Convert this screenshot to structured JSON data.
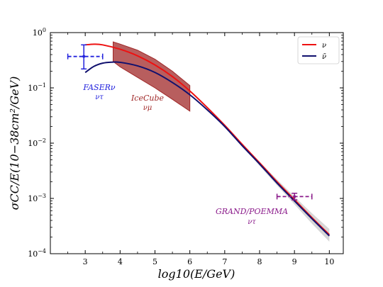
{
  "chart_data": {
    "type": "line",
    "xlabel": "log10(E/GeV)",
    "ylabel": "σCC/E(10−38cm²/GeV)",
    "xlim": [
      2.0,
      10.4
    ],
    "ylim_log10": [
      -4,
      0
    ],
    "y_scale": "log",
    "x_ticks": [
      3,
      4,
      5,
      6,
      7,
      8,
      9,
      10
    ],
    "y_ticks": [
      {
        "base": "10",
        "exp": "0",
        "value": 1
      },
      {
        "base": "10",
        "exp": "−1",
        "value": 0.1
      },
      {
        "base": "10",
        "exp": "−2",
        "value": 0.01
      },
      {
        "base": "10",
        "exp": "−3",
        "value": 0.001
      },
      {
        "base": "10",
        "exp": "−4",
        "value": 0.0001
      }
    ],
    "series": [
      {
        "name": "ν",
        "color": "#ee1111",
        "x": [
          3.0,
          3.25,
          3.5,
          4.0,
          4.5,
          5.0,
          5.5,
          6.0,
          6.5,
          7.0,
          7.5,
          8.0,
          8.5,
          9.0,
          9.5,
          10.0
        ],
        "y": [
          0.6,
          0.617,
          0.6,
          0.5,
          0.38,
          0.26,
          0.16,
          0.088,
          0.044,
          0.021,
          0.0095,
          0.0044,
          0.002,
          0.00095,
          0.00045,
          0.00022
        ]
      },
      {
        "name": "ν̄",
        "color": "#10106e",
        "x": [
          3.0,
          3.25,
          3.5,
          3.75,
          4.0,
          4.5,
          5.0,
          5.5,
          6.0,
          6.5,
          7.0,
          7.5,
          8.0,
          8.5,
          9.0,
          9.5,
          10.0
        ],
        "y": [
          0.19,
          0.245,
          0.28,
          0.292,
          0.29,
          0.25,
          0.19,
          0.125,
          0.075,
          0.04,
          0.02,
          0.009,
          0.0042,
          0.0019,
          0.0009,
          0.00043,
          0.00021
        ]
      }
    ],
    "uncertainty_band_high_energy": {
      "color": "#c8c8c8",
      "x": [
        7.0,
        7.5,
        8.0,
        8.5,
        9.0,
        9.5,
        10.0
      ],
      "y_low": [
        0.0197,
        0.0089,
        0.0039,
        0.00172,
        0.00078,
        0.00035,
        0.000165
      ],
      "y_high": [
        0.0215,
        0.0098,
        0.0046,
        0.0022,
        0.00108,
        0.00054,
        0.00028
      ]
    },
    "measurements": [
      {
        "label": "IceCube",
        "sublabel": "νμ",
        "color": "#a02828",
        "kind": "band",
        "x": [
          3.8,
          4.0,
          4.5,
          5.0,
          5.5,
          6.0
        ],
        "y_low": [
          0.3,
          0.24,
          0.155,
          0.1,
          0.062,
          0.038
        ],
        "y_high": [
          0.68,
          0.62,
          0.48,
          0.33,
          0.2,
          0.11
        ]
      },
      {
        "label": "FASERν",
        "sublabel": "ντ",
        "color": "#2222dd",
        "kind": "errorbar",
        "x": 2.96,
        "y": 0.37,
        "xerr": [
          2.5,
          3.5
        ],
        "yerr": [
          0.22,
          0.6
        ]
      },
      {
        "label": "GRAND/POEMMA",
        "sublabel": "ντ",
        "color": "#8a1a8a",
        "kind": "errorbar",
        "x": 9.0,
        "y": 0.00108,
        "xerr": [
          8.5,
          9.5
        ],
        "yerr": [
          0.00094,
          0.00124
        ]
      }
    ],
    "legend": {
      "placement": "top-right",
      "entries": [
        {
          "label": "ν",
          "color": "#ee1111"
        },
        {
          "label": "ν̄",
          "color": "#10106e"
        }
      ]
    },
    "grid": false
  }
}
